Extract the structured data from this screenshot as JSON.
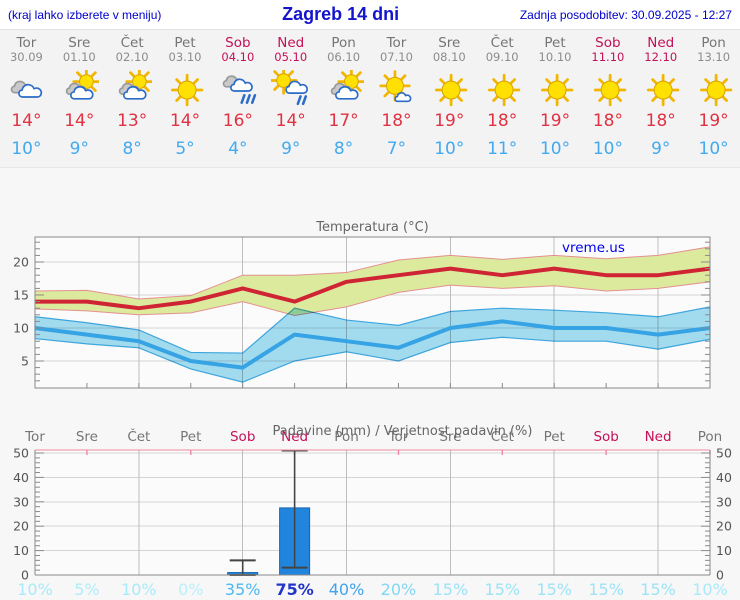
{
  "header": {
    "left": "(kraj lahko izberete v meniju)",
    "title": "Zagreb 14 dni",
    "right": "Zadnja posodobitev: 30.09.2025 - 12:27"
  },
  "watermark": "vreme.us",
  "days": [
    {
      "name": "Tor",
      "date": "30.09",
      "weekend": false,
      "icon": "cloudy",
      "tmax": "14°",
      "tmin": "10°"
    },
    {
      "name": "Sre",
      "date": "01.10",
      "weekend": false,
      "icon": "partly-cloudy",
      "tmax": "14°",
      "tmin": "9°"
    },
    {
      "name": "Čet",
      "date": "02.10",
      "weekend": false,
      "icon": "partly-cloudy",
      "tmax": "13°",
      "tmin": "8°"
    },
    {
      "name": "Pet",
      "date": "03.10",
      "weekend": false,
      "icon": "sunny",
      "tmax": "14°",
      "tmin": "5°"
    },
    {
      "name": "Sob",
      "date": "04.10",
      "weekend": true,
      "icon": "rain",
      "tmax": "16°",
      "tmin": "4°"
    },
    {
      "name": "Ned",
      "date": "05.10",
      "weekend": true,
      "icon": "sun-rain",
      "tmax": "14°",
      "tmin": "9°"
    },
    {
      "name": "Pon",
      "date": "06.10",
      "weekend": false,
      "icon": "partly-cloudy",
      "tmax": "17°",
      "tmin": "8°"
    },
    {
      "name": "Tor",
      "date": "07.10",
      "weekend": false,
      "icon": "mostly-sunny",
      "tmax": "18°",
      "tmin": "7°"
    },
    {
      "name": "Sre",
      "date": "08.10",
      "weekend": false,
      "icon": "sunny",
      "tmax": "19°",
      "tmin": "10°"
    },
    {
      "name": "Čet",
      "date": "09.10",
      "weekend": false,
      "icon": "sunny",
      "tmax": "18°",
      "tmin": "11°"
    },
    {
      "name": "Pet",
      "date": "10.10",
      "weekend": false,
      "icon": "sunny",
      "tmax": "19°",
      "tmin": "10°"
    },
    {
      "name": "Sob",
      "date": "11.10",
      "weekend": true,
      "icon": "sunny",
      "tmax": "18°",
      "tmin": "10°"
    },
    {
      "name": "Ned",
      "date": "12.10",
      "weekend": true,
      "icon": "sunny",
      "tmax": "18°",
      "tmin": "9°"
    },
    {
      "name": "Pon",
      "date": "13.10",
      "weekend": false,
      "icon": "sunny",
      "tmax": "19°",
      "tmin": "10°"
    }
  ],
  "chart_data": [
    {
      "type": "line",
      "title": "Temperatura (°C)",
      "x_labels": [
        "Tor",
        "Sre",
        "Čet",
        "Pet",
        "Sob",
        "Ned",
        "Pon",
        "Tor",
        "Sre",
        "Čet",
        "Pet",
        "Sob",
        "Ned",
        "Pon"
      ],
      "ylim": [
        1,
        24
      ],
      "yticks": [
        5,
        10,
        15,
        20
      ],
      "grid": true,
      "series": [
        {
          "name": "max-temp",
          "color": "#cf2433",
          "band_color": "#dcea9e",
          "band_edge": "#e49090",
          "values": [
            14,
            14,
            13,
            14,
            16,
            14,
            17,
            18,
            19,
            18,
            19,
            18,
            18,
            19
          ],
          "hi": [
            15.6,
            15.7,
            14.4,
            14.9,
            18.0,
            18.0,
            18.4,
            20.3,
            21.0,
            20.4,
            21.0,
            20.5,
            21.0,
            22.3
          ],
          "lo": [
            12.9,
            12.6,
            12.0,
            12.3,
            14.0,
            11.9,
            13.2,
            15.4,
            16.5,
            16.0,
            16.4,
            15.6,
            16.0,
            17.0
          ]
        },
        {
          "name": "min-temp",
          "color": "#36a3e4",
          "band_color": "#a6dff2",
          "band_edge": "#3fa8e0",
          "values": [
            10,
            9,
            8,
            5,
            4,
            9,
            8,
            7,
            10,
            11,
            10,
            10,
            9,
            10
          ],
          "hi": [
            11.7,
            10.8,
            9.7,
            6.3,
            6.2,
            13.0,
            11.2,
            10.4,
            12.5,
            13.0,
            12.7,
            12.3,
            11.7,
            13.2
          ],
          "lo": [
            8.4,
            7.6,
            7.0,
            3.8,
            1.8,
            5.0,
            6.4,
            5.0,
            7.8,
            8.6,
            8.0,
            8.0,
            6.8,
            8.3
          ]
        }
      ]
    },
    {
      "type": "bar",
      "title": "Padavine (mm) / Verjetnost padavin (%)",
      "x_labels": [
        "Tor",
        "Sre",
        "Čet",
        "Pet",
        "Sob",
        "Ned",
        "Pon",
        "Tor",
        "Sre",
        "Čet",
        "Pet",
        "Sob",
        "Ned",
        "Pon"
      ],
      "weekend_flags": [
        false,
        false,
        false,
        false,
        true,
        true,
        false,
        false,
        false,
        false,
        false,
        true,
        true,
        false
      ],
      "ylim": [
        0,
        51.2
      ],
      "yticks": [
        0,
        10,
        20,
        30,
        40,
        50
      ],
      "values": [
        0,
        0,
        0,
        0,
        1,
        27.5,
        0,
        0,
        0,
        0,
        0,
        0,
        0,
        0
      ],
      "whisker_lo": [
        null,
        null,
        null,
        null,
        0,
        3,
        null,
        null,
        null,
        null,
        null,
        null,
        null,
        null
      ],
      "whisker_hi": [
        null,
        null,
        null,
        null,
        6,
        51,
        null,
        null,
        null,
        null,
        null,
        null,
        null,
        null
      ],
      "pop_values": [
        10,
        5,
        10,
        0,
        35,
        75,
        40,
        20,
        15,
        15,
        15,
        15,
        15,
        10
      ],
      "pop_labels": [
        "10%",
        "5%",
        "10%",
        "0%",
        "35%",
        "75%",
        "40%",
        "20%",
        "15%",
        "15%",
        "15%",
        "15%",
        "15%",
        "10%"
      ]
    }
  ],
  "colors": {
    "weekday": "#757575",
    "weekend": "#c41058",
    "tmax_text": "#e03243",
    "tmin_text": "#42aaf0",
    "frame": "#8a8a8a",
    "grid_h": "#d4d4d4",
    "grid_v": "#bdbdbd",
    "axis_text": "#555555",
    "title_text": "#666666",
    "bar_fill": "#2285dd",
    "bar_edge": "#1565b0",
    "whisker": "#444444",
    "precip_top": "#ef8aa2",
    "watermark": "#0000ee",
    "pop_color_map": {
      "0": "#baf0fb",
      "5": "#b0edfa",
      "10": "#a8eaf9",
      "15": "#9de3f6",
      "20": "#84d7f3",
      "35": "#4eb8ef",
      "40": "#3fa3ea",
      "75": "#2336c8"
    }
  }
}
